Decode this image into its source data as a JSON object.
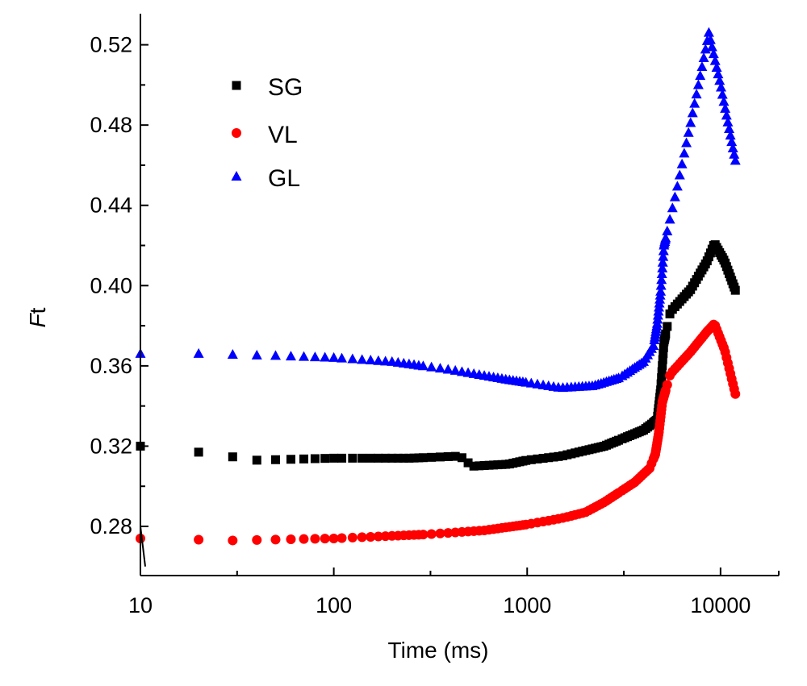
{
  "chart_data": {
    "type": "scatter",
    "xlabel": "Time (ms)",
    "ylabel_italic": "F",
    "ylabel_rest": "t",
    "xscale": "log",
    "xlim": [
      10,
      20000
    ],
    "ylim": [
      0.2555,
      0.5355
    ],
    "xticks": [
      10,
      100,
      1000,
      10000
    ],
    "xtick_labels": [
      "10",
      "100",
      "1000",
      "10000"
    ],
    "yticks": [
      0.28,
      0.32,
      0.36,
      0.4,
      0.44,
      0.48,
      0.52
    ],
    "ytick_labels": [
      "0.28",
      "0.32",
      "0.36",
      "0.40",
      "0.44",
      "0.48",
      "0.52"
    ],
    "grid": false,
    "legend_position": "top-left",
    "series": [
      {
        "name": "SG",
        "color": "#000000",
        "marker": "square",
        "anchors": [
          [
            10,
            0.32
          ],
          [
            20,
            0.317
          ],
          [
            40,
            0.313
          ],
          [
            100,
            0.314
          ],
          [
            250,
            0.314
          ],
          [
            450,
            0.315
          ],
          [
            520,
            0.31
          ],
          [
            800,
            0.311
          ],
          [
            1000,
            0.313
          ],
          [
            1500,
            0.315
          ],
          [
            2500,
            0.32
          ],
          [
            4000,
            0.328
          ],
          [
            4700,
            0.333
          ],
          [
            4900,
            0.348
          ],
          [
            5100,
            0.372
          ],
          [
            5500,
            0.387
          ],
          [
            7000,
            0.398
          ],
          [
            8500,
            0.412
          ],
          [
            9300,
            0.421
          ],
          [
            10500,
            0.412
          ],
          [
            12000,
            0.397
          ]
        ]
      },
      {
        "name": "VL",
        "color": "#ff0000",
        "marker": "circle",
        "anchors": [
          [
            10,
            0.274
          ],
          [
            30,
            0.273
          ],
          [
            100,
            0.274
          ],
          [
            300,
            0.276
          ],
          [
            600,
            0.278
          ],
          [
            1000,
            0.281
          ],
          [
            1500,
            0.284
          ],
          [
            2000,
            0.287
          ],
          [
            2500,
            0.292
          ],
          [
            3000,
            0.297
          ],
          [
            3600,
            0.302
          ],
          [
            4300,
            0.309
          ],
          [
            4600,
            0.316
          ],
          [
            4800,
            0.327
          ],
          [
            5000,
            0.342
          ],
          [
            5500,
            0.356
          ],
          [
            7000,
            0.367
          ],
          [
            8500,
            0.377
          ],
          [
            9300,
            0.381
          ],
          [
            10500,
            0.368
          ],
          [
            12000,
            0.345
          ]
        ]
      },
      {
        "name": "GL",
        "color": "#0000ff",
        "marker": "triangle",
        "anchors": [
          [
            10,
            0.366
          ],
          [
            20,
            0.366
          ],
          [
            50,
            0.365
          ],
          [
            100,
            0.364
          ],
          [
            200,
            0.362
          ],
          [
            400,
            0.358
          ],
          [
            800,
            0.353
          ],
          [
            1500,
            0.349
          ],
          [
            2200,
            0.35
          ],
          [
            3000,
            0.354
          ],
          [
            4000,
            0.362
          ],
          [
            4500,
            0.37
          ],
          [
            4700,
            0.381
          ],
          [
            4900,
            0.397
          ],
          [
            5100,
            0.42
          ],
          [
            6000,
            0.45
          ],
          [
            7500,
            0.495
          ],
          [
            8700,
            0.526
          ],
          [
            10000,
            0.5
          ],
          [
            12000,
            0.461
          ]
        ]
      }
    ]
  }
}
